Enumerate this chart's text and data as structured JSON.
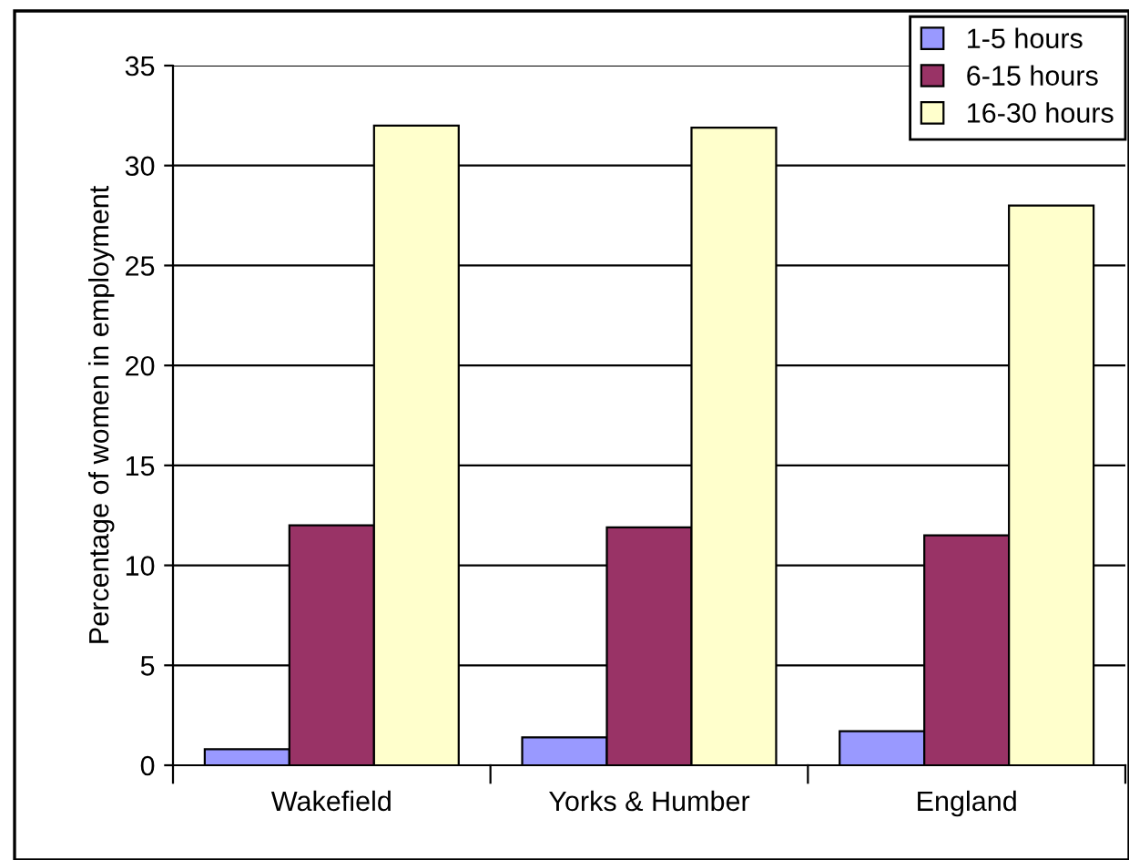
{
  "chart_data": {
    "type": "bar",
    "ylabel": "Percentage of women in employment",
    "categories": [
      "Wakefield",
      "Yorks & Humber",
      "England"
    ],
    "series": [
      {
        "name": "1-5 hours",
        "color": "#9999ff",
        "values": [
          0.8,
          1.4,
          1.7
        ]
      },
      {
        "name": "6-15 hours",
        "color": "#993366",
        "values": [
          12.0,
          11.9,
          11.5
        ]
      },
      {
        "name": "16-30 hours",
        "color": "#ffffcc",
        "values": [
          32.0,
          31.9,
          28.0
        ]
      }
    ],
    "ylim": [
      0,
      35
    ],
    "yticks": [
      0,
      5,
      10,
      15,
      20,
      25,
      30,
      35
    ],
    "grid": "y",
    "legend": "top right"
  }
}
